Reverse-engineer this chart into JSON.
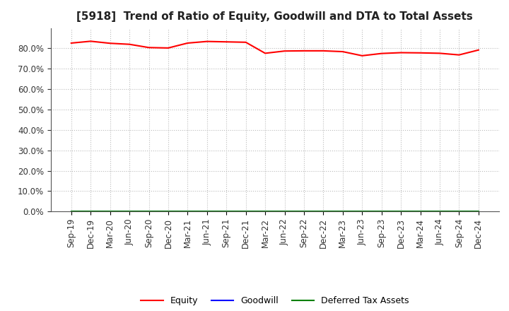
{
  "title": "[5918]  Trend of Ratio of Equity, Goodwill and DTA to Total Assets",
  "x_labels": [
    "Sep-19",
    "Dec-19",
    "Mar-20",
    "Jun-20",
    "Sep-20",
    "Dec-20",
    "Mar-21",
    "Jun-21",
    "Sep-21",
    "Dec-21",
    "Mar-22",
    "Jun-22",
    "Sep-22",
    "Dec-22",
    "Mar-23",
    "Jun-23",
    "Sep-23",
    "Dec-23",
    "Mar-24",
    "Jun-24",
    "Sep-24",
    "Dec-24"
  ],
  "equity": [
    0.826,
    0.835,
    0.825,
    0.82,
    0.804,
    0.802,
    0.826,
    0.834,
    0.832,
    0.83,
    0.776,
    0.787,
    0.788,
    0.788,
    0.784,
    0.764,
    0.775,
    0.779,
    0.778,
    0.776,
    0.768,
    0.792
  ],
  "goodwill": [
    0.0,
    0.0,
    0.0,
    0.0,
    0.0,
    0.0,
    0.0,
    0.0,
    0.0,
    0.0,
    0.0,
    0.0,
    0.0,
    0.0,
    0.0,
    0.0,
    0.0,
    0.0,
    0.0,
    0.0,
    0.0,
    0.0
  ],
  "dta": [
    0.0,
    0.0,
    0.0,
    0.0,
    0.0,
    0.0,
    0.0,
    0.0,
    0.0,
    0.0,
    0.0,
    0.0,
    0.0,
    0.0,
    0.0,
    0.0,
    0.0,
    0.0,
    0.0,
    0.0,
    0.0,
    0.0
  ],
  "equity_color": "#FF0000",
  "goodwill_color": "#0000FF",
  "dta_color": "#008000",
  "ylim": [
    0.0,
    0.9
  ],
  "yticks": [
    0.0,
    0.1,
    0.2,
    0.3,
    0.4,
    0.5,
    0.6,
    0.7,
    0.8
  ],
  "background_color": "#FFFFFF",
  "grid_color": "#BBBBBB",
  "title_fontsize": 11,
  "tick_fontsize": 8.5,
  "legend_labels": [
    "Equity",
    "Goodwill",
    "Deferred Tax Assets"
  ]
}
